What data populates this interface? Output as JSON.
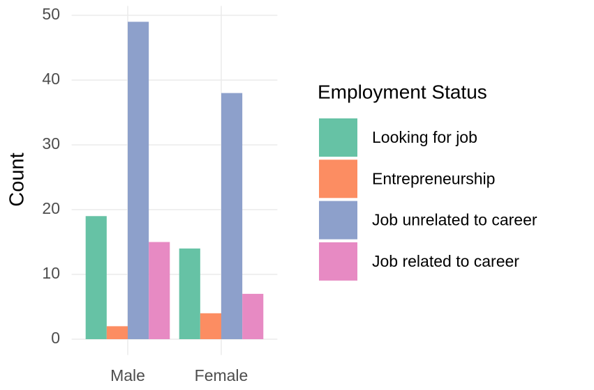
{
  "chart_data": {
    "type": "bar",
    "y_label": "Count",
    "legend_title": "Employment Status",
    "categories": [
      "Male",
      "Female"
    ],
    "series": [
      {
        "name": "Looking for job",
        "color": "#66c2a5",
        "values": [
          19,
          14
        ]
      },
      {
        "name": "Entrepreneurship",
        "color": "#fc8d62",
        "values": [
          2,
          4
        ]
      },
      {
        "name": "Job unrelated to career",
        "color": "#8da0cb",
        "values": [
          49,
          38
        ]
      },
      {
        "name": "Job related to career",
        "color": "#e78ac3",
        "values": [
          15,
          7
        ]
      }
    ],
    "ylim": [
      -2.45,
      51.45
    ],
    "yticks": [
      0,
      10,
      20,
      30,
      40,
      50
    ],
    "grid": true,
    "legend": "right"
  }
}
